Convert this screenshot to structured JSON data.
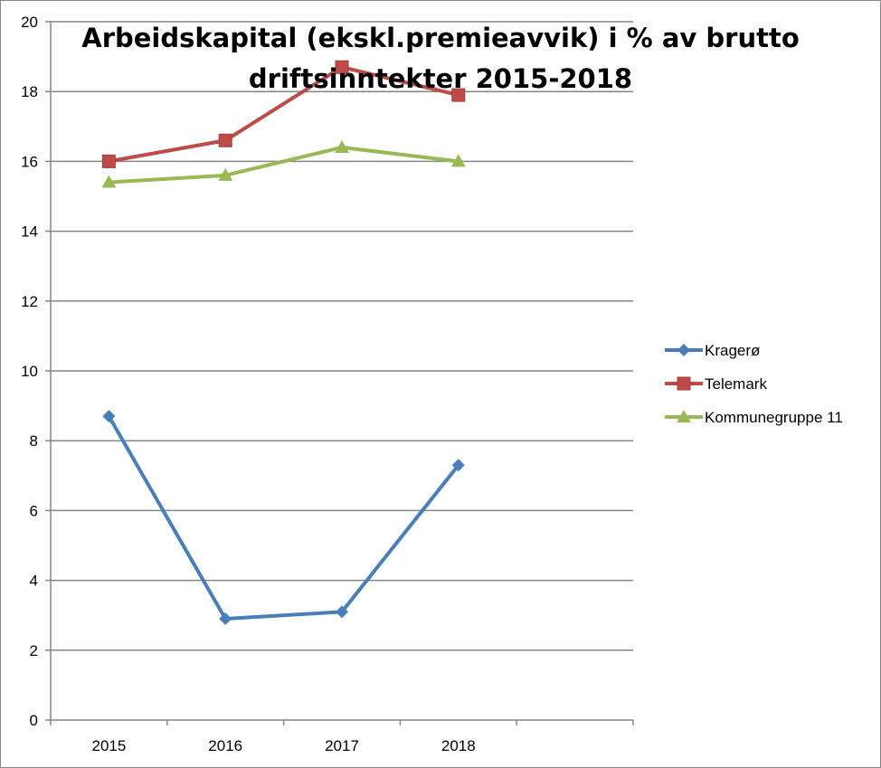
{
  "chart_data": {
    "type": "line",
    "title_lines": [
      "Arbeidskapital (ekskl.premieavvik) i % av brutto",
      "driftsinntekter 2015-2018"
    ],
    "categories": [
      "2015",
      "2016",
      "2017",
      "2018"
    ],
    "ylim": [
      0,
      20
    ],
    "yticks": [
      "0",
      "2",
      "4",
      "6",
      "8",
      "10",
      "12",
      "14",
      "16",
      "18",
      "20"
    ],
    "grid": true,
    "legend_position": "right",
    "series": [
      {
        "name": "Kragerø",
        "values": [
          8.7,
          2.9,
          3.1,
          7.3
        ],
        "color": "#4a7ebb",
        "marker": "diamond"
      },
      {
        "name": "Telemark",
        "values": [
          16.0,
          16.6,
          18.7,
          17.9
        ],
        "color": "#be4b48",
        "marker": "square"
      },
      {
        "name": "Kommunegruppe 11",
        "values": [
          15.4,
          15.6,
          16.4,
          16.0
        ],
        "color": "#98b954",
        "marker": "triangle"
      }
    ]
  }
}
